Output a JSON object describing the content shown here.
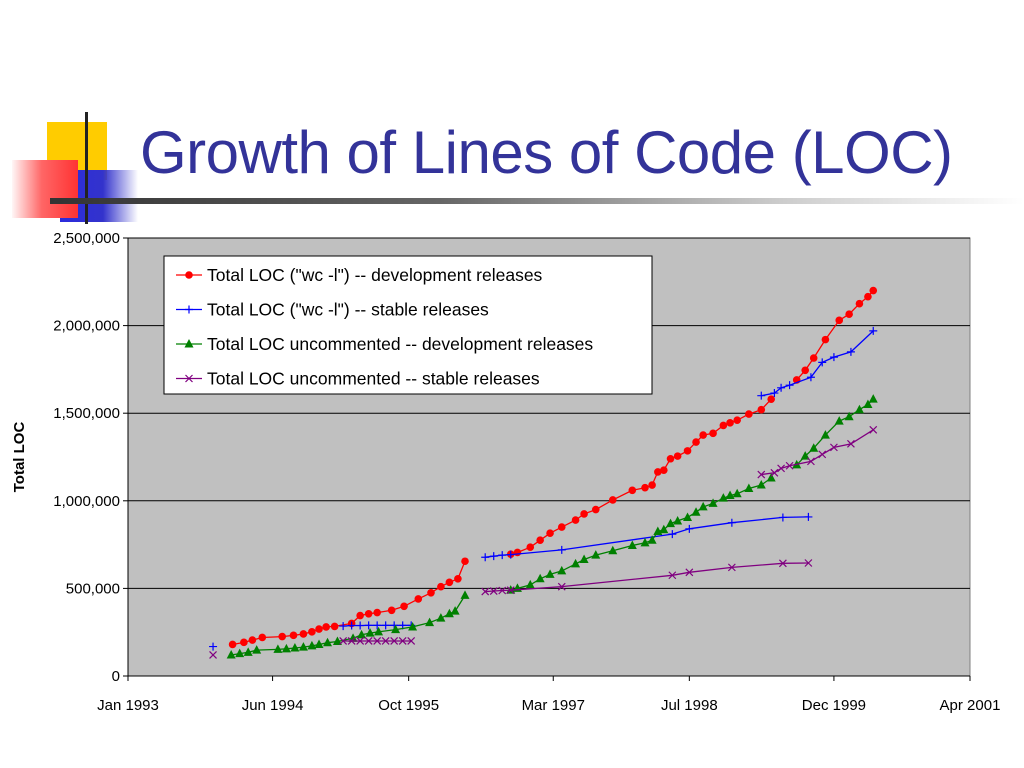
{
  "slide": {
    "title": "Growth of Lines of Code (LOC)"
  },
  "chart_data": {
    "type": "line",
    "title": "",
    "xlabel": "",
    "ylabel": "Total LOC",
    "x_type": "date",
    "xlim": [
      "1993-01",
      "2001-04"
    ],
    "ylim": [
      0,
      2500000
    ],
    "x_ticks": [
      {
        "date": "1993-01",
        "label": "Jan 1993"
      },
      {
        "date": "1994-06",
        "label": "Jun 1994"
      },
      {
        "date": "1995-10",
        "label": "Oct 1995"
      },
      {
        "date": "1997-03",
        "label": "Mar 1997"
      },
      {
        "date": "1998-07",
        "label": "Jul 1998"
      },
      {
        "date": "1999-12",
        "label": "Dec 1999"
      },
      {
        "date": "2001-04",
        "label": "Apr 2001"
      }
    ],
    "y_ticks": [
      {
        "value": 0,
        "label": "0"
      },
      {
        "value": 500000,
        "label": "500,000"
      },
      {
        "value": 1000000,
        "label": "1,000,000"
      },
      {
        "value": 1500000,
        "label": "1,500,000"
      },
      {
        "value": 2000000,
        "label": "2,000,000"
      },
      {
        "value": 2500000,
        "label": "2,500,000"
      }
    ],
    "grid": "horizontal",
    "legend_position": "top-left",
    "series": [
      {
        "name": "Total LOC (\"wc -l\") -- development releases",
        "color": "#ff0000",
        "marker": "circle",
        "segments": [
          [
            [
              "1994-01-10",
              180000
            ],
            [
              "1994-02-20",
              192000
            ],
            [
              "1994-03-20",
              205000
            ],
            [
              "1994-04-25",
              220000
            ],
            [
              "1994-07-05",
              225000
            ],
            [
              "1994-08-15",
              232000
            ],
            [
              "1994-09-20",
              240000
            ],
            [
              "1994-10-20",
              252000
            ],
            [
              "1994-11-15",
              268000
            ],
            [
              "1994-12-10",
              280000
            ],
            [
              "1995-01-10",
              283000
            ],
            [
              "1995-03-10",
              300000
            ],
            [
              "1995-04-10",
              345000
            ],
            [
              "1995-05-10",
              355000
            ],
            [
              "1995-06-10",
              362000
            ],
            [
              "1995-08-01",
              375000
            ],
            [
              "1995-09-15",
              398000
            ],
            [
              "1995-11-05",
              440000
            ],
            [
              "1995-12-20",
              475000
            ],
            [
              "1996-01-25",
              510000
            ],
            [
              "1996-02-25",
              535000
            ],
            [
              "1996-03-25",
              555000
            ],
            [
              "1996-04-20",
              655000
            ]
          ],
          [
            [
              "1996-10-01",
              695000
            ],
            [
              "1996-10-25",
              705000
            ],
            [
              "1996-12-10",
              735000
            ],
            [
              "1997-01-15",
              775000
            ],
            [
              "1997-02-20",
              815000
            ],
            [
              "1997-04-01",
              850000
            ],
            [
              "1997-05-20",
              890000
            ],
            [
              "1997-06-20",
              925000
            ],
            [
              "1997-08-01",
              950000
            ],
            [
              "1997-10-01",
              1005000
            ],
            [
              "1997-12-10",
              1060000
            ],
            [
              "1998-01-25",
              1075000
            ],
            [
              "1998-02-20",
              1090000
            ],
            [
              "1998-03-10",
              1165000
            ],
            [
              "1998-04-01",
              1175000
            ],
            [
              "1998-04-25",
              1240000
            ],
            [
              "1998-05-20",
              1255000
            ],
            [
              "1998-06-25",
              1285000
            ],
            [
              "1998-07-25",
              1335000
            ],
            [
              "1998-08-20",
              1375000
            ],
            [
              "1998-09-25",
              1385000
            ],
            [
              "1998-11-01",
              1430000
            ],
            [
              "1998-11-25",
              1445000
            ],
            [
              "1998-12-20",
              1460000
            ],
            [
              "1999-02-01",
              1495000
            ],
            [
              "1999-03-15",
              1520000
            ],
            [
              "1999-04-20",
              1580000
            ]
          ],
          [
            [
              "1999-07-20",
              1690000
            ],
            [
              "1999-08-20",
              1745000
            ],
            [
              "1999-09-20",
              1815000
            ],
            [
              "1999-11-01",
              1920000
            ],
            [
              "1999-12-20",
              2030000
            ],
            [
              "2000-01-25",
              2065000
            ],
            [
              "2000-03-01",
              2125000
            ],
            [
              "2000-04-01",
              2165000
            ],
            [
              "2000-04-20",
              2200000
            ]
          ]
        ]
      },
      {
        "name": "Total LOC (\"wc -l\") -- stable releases",
        "color": "#0000ff",
        "marker": "plus",
        "segments": [
          [
            [
              "1993-11-01",
              168000
            ]
          ],
          [
            [
              "1995-02-10",
              285000
            ],
            [
              "1995-03-10",
              288000
            ],
            [
              "1995-04-10",
              288000
            ],
            [
              "1995-05-10",
              289000
            ],
            [
              "1995-06-10",
              289000
            ],
            [
              "1995-07-10",
              289000
            ],
            [
              "1995-08-10",
              289000
            ],
            [
              "1995-09-10",
              289000
            ],
            [
              "1995-10-10",
              289000
            ]
          ],
          [
            [
              "1996-07-01",
              678000
            ],
            [
              "1996-08-01",
              684000
            ],
            [
              "1996-09-01",
              690000
            ],
            [
              "1996-10-01",
              693000
            ],
            [
              "1997-04-01",
              720000
            ],
            [
              "1998-05-01",
              810000
            ],
            [
              "1998-07-01",
              840000
            ],
            [
              "1998-12-01",
              875000
            ],
            [
              "1999-06-01",
              905000
            ],
            [
              "1999-09-01",
              908000
            ]
          ],
          [
            [
              "1999-03-15",
              1600000
            ],
            [
              "1999-05-01",
              1615000
            ],
            [
              "1999-05-25",
              1645000
            ],
            [
              "1999-06-25",
              1660000
            ],
            [
              "1999-09-10",
              1705000
            ],
            [
              "1999-10-20",
              1790000
            ],
            [
              "1999-12-01",
              1820000
            ],
            [
              "2000-02-01",
              1850000
            ],
            [
              "2000-04-20",
              1970000
            ]
          ]
        ]
      },
      {
        "name": "Total LOC uncommented -- development releases",
        "color": "#008000",
        "marker": "triangle",
        "segments": [
          [
            [
              "1994-01-05",
              120000
            ],
            [
              "1994-02-05",
              128000
            ],
            [
              "1994-03-05",
              135000
            ],
            [
              "1994-04-05",
              148000
            ],
            [
              "1994-06-20",
              152000
            ],
            [
              "1994-07-20",
              155000
            ],
            [
              "1994-08-20",
              160000
            ],
            [
              "1994-09-20",
              165000
            ],
            [
              "1994-10-20",
              172000
            ],
            [
              "1994-11-15",
              180000
            ],
            [
              "1994-12-15",
              190000
            ],
            [
              "1995-01-20",
              197000
            ],
            [
              "1995-03-15",
              215000
            ],
            [
              "1995-04-15",
              235000
            ],
            [
              "1995-05-15",
              245000
            ],
            [
              "1995-06-15",
              252000
            ],
            [
              "1995-08-15",
              265000
            ],
            [
              "1995-10-15",
              280000
            ],
            [
              "1995-12-15",
              305000
            ],
            [
              "1996-01-25",
              330000
            ],
            [
              "1996-02-25",
              355000
            ],
            [
              "1996-03-15",
              370000
            ],
            [
              "1996-04-20",
              460000
            ]
          ],
          [
            [
              "1996-10-01",
              490000
            ],
            [
              "1996-10-25",
              500000
            ],
            [
              "1996-12-10",
              520000
            ],
            [
              "1997-01-15",
              555000
            ],
            [
              "1997-02-20",
              580000
            ],
            [
              "1997-04-01",
              600000
            ],
            [
              "1997-05-20",
              640000
            ],
            [
              "1997-06-20",
              665000
            ],
            [
              "1997-08-01",
              690000
            ],
            [
              "1997-10-01",
              715000
            ],
            [
              "1997-12-10",
              745000
            ],
            [
              "1998-01-25",
              760000
            ],
            [
              "1998-02-20",
              775000
            ],
            [
              "1998-03-10",
              825000
            ],
            [
              "1998-04-01",
              835000
            ],
            [
              "1998-04-25",
              870000
            ],
            [
              "1998-05-20",
              885000
            ],
            [
              "1998-06-25",
              905000
            ],
            [
              "1998-07-25",
              935000
            ],
            [
              "1998-08-20",
              965000
            ],
            [
              "1998-09-25",
              985000
            ],
            [
              "1998-11-01",
              1015000
            ],
            [
              "1998-11-25",
              1030000
            ],
            [
              "1998-12-20",
              1040000
            ],
            [
              "1999-02-01",
              1070000
            ],
            [
              "1999-03-15",
              1090000
            ],
            [
              "1999-04-20",
              1130000
            ]
          ],
          [
            [
              "1999-07-20",
              1205000
            ],
            [
              "1999-08-20",
              1255000
            ],
            [
              "1999-09-20",
              1300000
            ],
            [
              "1999-11-01",
              1375000
            ],
            [
              "1999-12-20",
              1455000
            ],
            [
              "2000-01-25",
              1480000
            ],
            [
              "2000-03-01",
              1520000
            ],
            [
              "2000-04-01",
              1550000
            ],
            [
              "2000-04-20",
              1580000
            ]
          ]
        ]
      },
      {
        "name": "Total LOC uncommented -- stable releases",
        "color": "#800080",
        "marker": "x",
        "segments": [
          [
            [
              "1993-11-01",
              120000
            ]
          ],
          [
            [
              "1995-02-10",
              200000
            ],
            [
              "1995-03-10",
              200000
            ],
            [
              "1995-04-10",
              200000
            ],
            [
              "1995-05-10",
              200000
            ],
            [
              "1995-06-10",
              200000
            ],
            [
              "1995-07-10",
              200000
            ],
            [
              "1995-08-10",
              200000
            ],
            [
              "1995-09-10",
              200000
            ],
            [
              "1995-10-10",
              200000
            ]
          ],
          [
            [
              "1996-07-01",
              482000
            ],
            [
              "1996-08-01",
              485000
            ],
            [
              "1996-09-01",
              488000
            ],
            [
              "1996-10-01",
              490000
            ],
            [
              "1997-04-01",
              510000
            ],
            [
              "1998-05-01",
              575000
            ],
            [
              "1998-07-01",
              592000
            ],
            [
              "1998-12-01",
              620000
            ],
            [
              "1999-06-01",
              643000
            ],
            [
              "1999-09-01",
              645000
            ]
          ],
          [
            [
              "1999-03-15",
              1150000
            ],
            [
              "1999-05-01",
              1160000
            ],
            [
              "1999-05-25",
              1185000
            ],
            [
              "1999-06-25",
              1200000
            ],
            [
              "1999-09-10",
              1225000
            ],
            [
              "1999-10-20",
              1265000
            ],
            [
              "1999-12-01",
              1305000
            ],
            [
              "2000-02-01",
              1325000
            ],
            [
              "2000-04-20",
              1405000
            ]
          ]
        ]
      }
    ]
  }
}
